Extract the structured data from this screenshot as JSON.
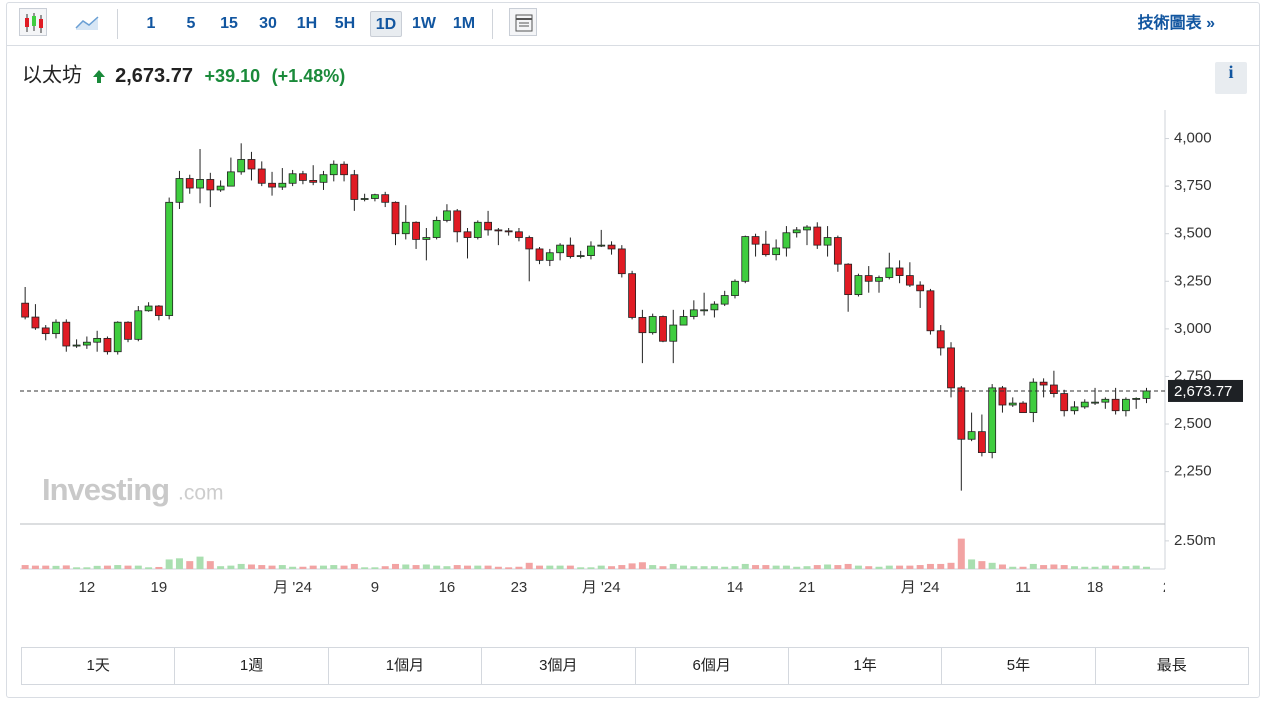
{
  "toolbar": {
    "intervals": [
      "1",
      "5",
      "15",
      "30",
      "1H",
      "5H",
      "1D",
      "1W",
      "1M"
    ],
    "active": 6,
    "link": "技術圖表 »"
  },
  "header": {
    "name": "以太坊",
    "price": "2,673.77",
    "change": "+39.10",
    "change_pct": "(+1.48%)",
    "info": "i"
  },
  "watermark": {
    "brand": "Investing",
    "suffix": ".com"
  },
  "range_buttons": [
    "1天",
    "1週",
    "1個月",
    "3個月",
    "6個月",
    "1年",
    "5年",
    "最長"
  ],
  "chart_data": {
    "type": "candlestick",
    "up_color": "#3fcd3f",
    "down_color": "#e01b24",
    "xlim": [
      -0.5,
      110.8
    ],
    "xticks": [
      {
        "value": 6,
        "label": "12"
      },
      {
        "value": 13,
        "label": "19"
      },
      {
        "value": 26,
        "label": "月 '24"
      },
      {
        "value": 34,
        "label": "9"
      },
      {
        "value": 41,
        "label": "16"
      },
      {
        "value": 48,
        "label": "23"
      },
      {
        "value": 56,
        "label": "月 '24"
      },
      {
        "value": 69,
        "label": "14"
      },
      {
        "value": 76,
        "label": "21"
      },
      {
        "value": 87,
        "label": "月 '24"
      },
      {
        "value": 97,
        "label": "11"
      },
      {
        "value": 104,
        "label": "18"
      },
      {
        "value": 111,
        "label": "2"
      }
    ],
    "ylim": [
      1980,
      4150
    ],
    "yticks": [
      {
        "value": 2250,
        "label": "2,250"
      },
      {
        "value": 2500,
        "label": "2,500"
      },
      {
        "value": 2750,
        "label": "2,750"
      },
      {
        "value": 3000,
        "label": "3,000"
      },
      {
        "value": 3250,
        "label": "3,250"
      },
      {
        "value": 3500,
        "label": "3,500"
      },
      {
        "value": 3750,
        "label": "3,750"
      },
      {
        "value": 4000,
        "label": "4,000"
      }
    ],
    "last_label": "2,673.77",
    "open": [
      3135,
      3062,
      3005,
      2975,
      3035,
      2910,
      2915,
      2930,
      2950,
      2880,
      3035,
      2945,
      3095,
      3120,
      3070,
      3665,
      3790,
      3740,
      3785,
      3730,
      3750,
      3825,
      3890,
      3840,
      3765,
      3745,
      3765,
      3815,
      3780,
      3770,
      3810,
      3865,
      3810,
      3680,
      3685,
      3705,
      3665,
      3500,
      3560,
      3470,
      3480,
      3570,
      3620,
      3510,
      3480,
      3560,
      3520,
      3515,
      3510,
      3480,
      3420,
      3360,
      3400,
      3440,
      3380,
      3385,
      3435,
      3440,
      3420,
      3290,
      3060,
      2980,
      3065,
      2935,
      3020,
      3065,
      3100,
      3100,
      3130,
      3175,
      3250,
      3485,
      3445,
      3390,
      3425,
      3505,
      3520,
      3535,
      3440,
      3480,
      3340,
      3180,
      3280,
      3250,
      3270,
      3320,
      3280,
      3230,
      3200,
      2990,
      2900,
      2690,
      2420,
      2460,
      2350,
      2690,
      2600,
      2610,
      2560,
      2720,
      2705,
      2660,
      2570,
      2590,
      2615,
      2615,
      2630,
      2570,
      2630,
      2634.67
    ],
    "high": [
      3220,
      3130,
      3020,
      3050,
      3050,
      2945,
      2960,
      2990,
      2960,
      3040,
      3040,
      3120,
      3140,
      3125,
      3690,
      3830,
      3810,
      3945,
      3820,
      3780,
      3900,
      3975,
      3930,
      3880,
      3825,
      3845,
      3835,
      3830,
      3860,
      3830,
      3885,
      3880,
      3835,
      3710,
      3710,
      3720,
      3670,
      3650,
      3565,
      3530,
      3590,
      3655,
      3630,
      3530,
      3570,
      3620,
      3530,
      3530,
      3530,
      3490,
      3430,
      3420,
      3450,
      3480,
      3410,
      3460,
      3520,
      3460,
      3440,
      3305,
      3100,
      3080,
      3070,
      3100,
      3100,
      3150,
      3190,
      3145,
      3200,
      3260,
      3490,
      3500,
      3515,
      3470,
      3540,
      3535,
      3545,
      3560,
      3540,
      3490,
      3345,
      3290,
      3330,
      3280,
      3400,
      3360,
      3350,
      3250,
      3210,
      3020,
      2930,
      2700,
      2560,
      2550,
      2710,
      2700,
      2640,
      2620,
      2740,
      2740,
      2780,
      2680,
      2620,
      2630,
      2690,
      2640,
      2690,
      2640,
      2640,
      2690
    ],
    "low": [
      3050,
      2995,
      2940,
      2950,
      2880,
      2900,
      2895,
      2880,
      2865,
      2865,
      2930,
      2935,
      3090,
      3045,
      3050,
      3630,
      3710,
      3660,
      3640,
      3720,
      3750,
      3810,
      3780,
      3750,
      3700,
      3730,
      3750,
      3760,
      3755,
      3730,
      3775,
      3775,
      3620,
      3670,
      3670,
      3640,
      3440,
      3470,
      3420,
      3360,
      3470,
      3560,
      3455,
      3370,
      3470,
      3490,
      3440,
      3490,
      3460,
      3250,
      3340,
      3330,
      3360,
      3370,
      3370,
      3365,
      3430,
      3390,
      3270,
      3050,
      2820,
      2970,
      2930,
      2820,
      3020,
      3050,
      3070,
      3060,
      3120,
      3160,
      3240,
      3380,
      3380,
      3360,
      3380,
      3480,
      3440,
      3420,
      3380,
      3300,
      3090,
      3170,
      3190,
      3190,
      3260,
      3240,
      3220,
      3110,
      2970,
      2860,
      2640,
      2150,
      2410,
      2330,
      2320,
      2560,
      2590,
      2560,
      2510,
      2640,
      2640,
      2540,
      2550,
      2580,
      2600,
      2580,
      2550,
      2540,
      2580,
      2610
    ],
    "close": [
      3062,
      3005,
      2975,
      3035,
      2910,
      2915,
      2930,
      2950,
      2880,
      3035,
      2945,
      3095,
      3120,
      3070,
      3665,
      3790,
      3740,
      3785,
      3730,
      3750,
      3825,
      3890,
      3840,
      3765,
      3745,
      3765,
      3815,
      3780,
      3770,
      3810,
      3865,
      3810,
      3680,
      3685,
      3705,
      3665,
      3500,
      3560,
      3470,
      3480,
      3570,
      3620,
      3510,
      3480,
      3560,
      3520,
      3515,
      3510,
      3480,
      3420,
      3360,
      3400,
      3440,
      3380,
      3385,
      3435,
      3440,
      3420,
      3290,
      3060,
      2980,
      3065,
      2935,
      3020,
      3065,
      3100,
      3100,
      3130,
      3175,
      3250,
      3485,
      3445,
      3390,
      3425,
      3505,
      3520,
      3535,
      3440,
      3480,
      3340,
      3180,
      3280,
      3250,
      3270,
      3320,
      3280,
      3230,
      3200,
      2990,
      2900,
      2690,
      2420,
      2460,
      2350,
      2690,
      2600,
      2610,
      2560,
      2720,
      2705,
      2660,
      2570,
      2590,
      2615,
      2615,
      2630,
      2570,
      2630,
      2634.67,
      2673.77
    ],
    "volume": {
      "ylim": [
        0,
        4
      ],
      "yticks": [
        {
          "value": 2.5,
          "label": "2.50m"
        }
      ],
      "up_color": "#a9dfb0",
      "down_color": "#f2a3a3",
      "values": [
        0.35,
        0.3,
        0.3,
        0.28,
        0.32,
        0.15,
        0.15,
        0.28,
        0.3,
        0.35,
        0.3,
        0.3,
        0.15,
        0.18,
        0.85,
        0.95,
        0.7,
        1.1,
        0.7,
        0.25,
        0.3,
        0.45,
        0.4,
        0.35,
        0.3,
        0.35,
        0.2,
        0.2,
        0.3,
        0.3,
        0.35,
        0.3,
        0.45,
        0.15,
        0.15,
        0.25,
        0.45,
        0.4,
        0.35,
        0.4,
        0.3,
        0.25,
        0.35,
        0.3,
        0.3,
        0.3,
        0.2,
        0.15,
        0.2,
        0.55,
        0.3,
        0.3,
        0.3,
        0.3,
        0.15,
        0.15,
        0.3,
        0.25,
        0.35,
        0.5,
        0.6,
        0.35,
        0.25,
        0.45,
        0.3,
        0.25,
        0.25,
        0.25,
        0.2,
        0.25,
        0.45,
        0.35,
        0.35,
        0.3,
        0.3,
        0.2,
        0.25,
        0.35,
        0.4,
        0.35,
        0.45,
        0.3,
        0.25,
        0.2,
        0.3,
        0.3,
        0.3,
        0.35,
        0.45,
        0.45,
        0.55,
        2.7,
        0.85,
        0.7,
        0.55,
        0.4,
        0.2,
        0.2,
        0.45,
        0.35,
        0.4,
        0.35,
        0.25,
        0.2,
        0.2,
        0.3,
        0.3,
        0.25,
        0.3,
        0.2
      ]
    }
  }
}
